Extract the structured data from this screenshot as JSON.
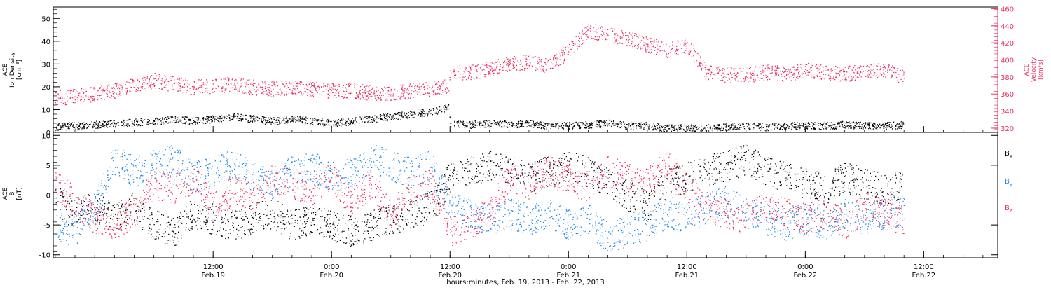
{
  "colors": {
    "black": "#000000",
    "pink": "#e8335f",
    "blue": "#1e88e5"
  },
  "xaxis": {
    "title": "hours:minutes, Feb. 19, 2013 - Feb. 22, 2013",
    "range_hours": [
      -16.2,
      79.5
    ],
    "ticks": [
      {
        "hour": 0,
        "top": "12:00",
        "bottom": "Feb.19"
      },
      {
        "hour": 12,
        "top": "0:00",
        "bottom": "Feb.20"
      },
      {
        "hour": 24,
        "top": "12:00",
        "bottom": "Feb.20"
      },
      {
        "hour": 36,
        "top": "0:00",
        "bottom": "Feb.21"
      },
      {
        "hour": 48,
        "top": "12:00",
        "bottom": "Feb.21"
      },
      {
        "hour": 60,
        "top": "0:00",
        "bottom": "Feb.22"
      },
      {
        "hour": 72,
        "top": "12:00",
        "bottom": "Feb.22"
      }
    ]
  },
  "chart_data": [
    {
      "type": "scatter",
      "panel": "top",
      "left_axis": {
        "label_lines": [
          "ACE",
          "Ion Density",
          "[cm⁻³]"
        ],
        "ylim": [
          0,
          55
        ],
        "ticks": [
          0,
          10,
          20,
          30,
          40,
          50
        ]
      },
      "right_axis": {
        "label_lines": [
          "ACE",
          "Velocity",
          "[km/s]"
        ],
        "ylim": [
          315,
          462
        ],
        "ticks": [
          320,
          340,
          360,
          380,
          400,
          420,
          440,
          460
        ]
      },
      "series": [
        {
          "axis": "left",
          "color": "#000000",
          "x": [
            -16,
            -14,
            -12,
            -10,
            -8,
            -6,
            -4,
            -2,
            0,
            2,
            4,
            6,
            8,
            10,
            12,
            14,
            16,
            18,
            20,
            22,
            23.9,
            24,
            26,
            28,
            30,
            32,
            34,
            36,
            38,
            40,
            42,
            44,
            46,
            48,
            50,
            52,
            54,
            56,
            58,
            60,
            62,
            64,
            66,
            68,
            70
          ],
          "values": [
            2.5,
            3,
            3.5,
            4,
            4.5,
            5,
            6,
            5,
            6,
            7,
            6,
            5,
            6,
            5,
            4,
            5,
            6,
            7,
            8,
            9,
            11,
            4,
            3.5,
            4,
            3.5,
            4,
            3,
            3,
            3.5,
            4,
            3,
            3,
            2,
            2,
            2,
            2.5,
            3,
            2.5,
            3,
            3,
            3,
            3.5,
            3,
            3,
            3.5
          ]
        },
        {
          "axis": "right",
          "color": "#e8335f",
          "x": [
            -16,
            -14,
            -12,
            -10,
            -8,
            -6,
            -4,
            -2,
            0,
            2,
            4,
            6,
            8,
            10,
            12,
            14,
            16,
            18,
            20,
            22,
            23.9,
            24,
            26,
            28,
            30,
            32,
            34,
            36,
            38,
            40,
            42,
            44,
            46,
            48,
            50,
            52,
            54,
            56,
            58,
            60,
            62,
            64,
            66,
            68,
            70
          ],
          "values": [
            355,
            358,
            360,
            364,
            370,
            376,
            372,
            368,
            370,
            372,
            368,
            366,
            368,
            366,
            364,
            364,
            362,
            362,
            364,
            366,
            370,
            385,
            386,
            390,
            395,
            398,
            393,
            410,
            435,
            430,
            425,
            418,
            412,
            418,
            385,
            383,
            382,
            386,
            384,
            388,
            386,
            384,
            386,
            388,
            380
          ]
        }
      ]
    },
    {
      "type": "scatter",
      "panel": "bottom",
      "left_axis": {
        "label_lines": [
          "ACE",
          "B",
          "[nT]"
        ],
        "ylim": [
          -10.5,
          10.5
        ],
        "ticks": [
          -10,
          -5,
          0,
          5,
          10
        ]
      },
      "zero_line": true,
      "series": [
        {
          "name": "Bx",
          "color": "#000000",
          "x": [
            -16,
            -14,
            -12,
            -10,
            -8,
            -6,
            -4,
            -2,
            0,
            2,
            4,
            6,
            8,
            10,
            12,
            14,
            16,
            18,
            20,
            22,
            24,
            26,
            28,
            30,
            32,
            34,
            36,
            38,
            40,
            42,
            44,
            46,
            48,
            50,
            52,
            54,
            56,
            58,
            60,
            62,
            64,
            66,
            68,
            70
          ],
          "values": [
            -1,
            -3,
            -2,
            -4,
            -2,
            -5,
            -6,
            -3,
            -4,
            -5,
            -4,
            -3,
            -5,
            -4,
            -5,
            -6,
            -5,
            -4,
            -3,
            -2,
            3,
            4,
            5,
            4,
            3,
            4,
            5,
            4,
            2,
            0,
            -2,
            2,
            3,
            4,
            5,
            6,
            4,
            3,
            2,
            1,
            3,
            2,
            1,
            2
          ]
        },
        {
          "name": "By",
          "color": "#1e88e5",
          "x": [
            -16,
            -14,
            -12,
            -10,
            -8,
            -6,
            -4,
            -2,
            0,
            2,
            4,
            6,
            8,
            10,
            12,
            14,
            16,
            18,
            20,
            22,
            24,
            26,
            28,
            30,
            32,
            34,
            36,
            38,
            40,
            42,
            44,
            46,
            48,
            50,
            52,
            54,
            56,
            58,
            60,
            62,
            64,
            66,
            68,
            70
          ],
          "values": [
            -5,
            -6,
            -2,
            6,
            4,
            5,
            6,
            3,
            4,
            5,
            3,
            2,
            4,
            5,
            3,
            4,
            6,
            5,
            4,
            5,
            -2,
            -3,
            -4,
            -3,
            -4,
            -3,
            -5,
            -4,
            -7,
            -6,
            -5,
            -3,
            -4,
            -2,
            -1,
            -3,
            -4,
            -5,
            -4,
            -5,
            -3,
            -4,
            -3,
            -3
          ]
        },
        {
          "name": "Bz",
          "color": "#e8335f",
          "x": [
            -16,
            -14,
            -12,
            -10,
            -8,
            -6,
            -4,
            -2,
            0,
            2,
            4,
            6,
            8,
            10,
            12,
            14,
            16,
            18,
            20,
            22,
            24,
            26,
            28,
            30,
            32,
            34,
            36,
            38,
            40,
            42,
            44,
            46,
            48,
            50,
            52,
            54,
            56,
            58,
            60,
            62,
            64,
            66,
            68,
            70
          ],
          "values": [
            2,
            -1,
            -4,
            -5,
            -3,
            2,
            1,
            3,
            -2,
            1,
            0,
            3,
            2,
            1,
            3,
            -1,
            2,
            -3,
            1,
            2,
            -6,
            -5,
            -3,
            3,
            2,
            4,
            3,
            1,
            4,
            3,
            2,
            5,
            1,
            -2,
            -3,
            -4,
            -2,
            -3,
            -4,
            -3,
            -5,
            -2,
            -3,
            -4
          ]
        }
      ],
      "legend": [
        "Bx",
        "By",
        "Bz"
      ]
    }
  ]
}
